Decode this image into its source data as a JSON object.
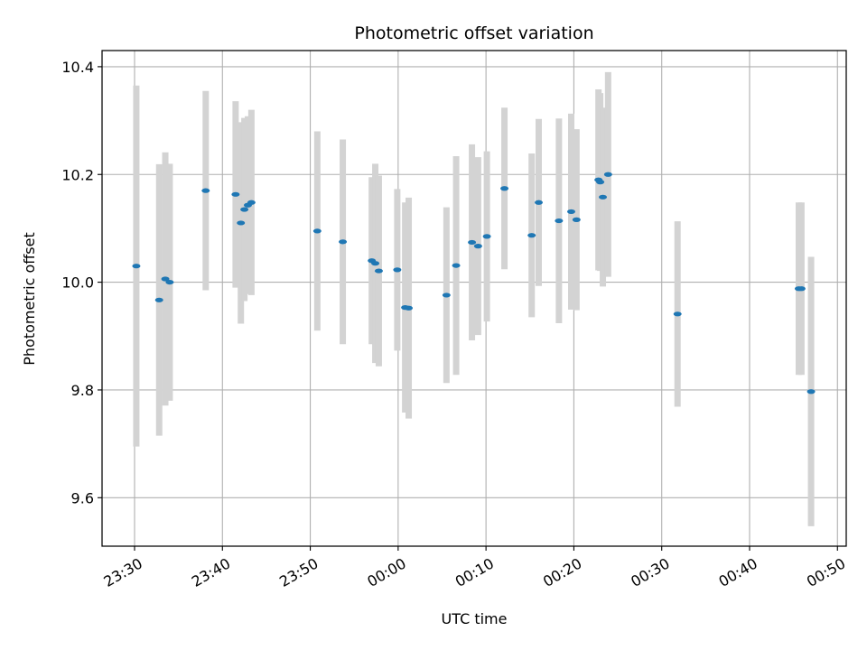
{
  "chart_data": {
    "type": "scatter",
    "title": "Photometric offset variation",
    "xlabel": "UTC time",
    "ylabel": "Photometric offset",
    "grid": true,
    "legend": "none",
    "xlim_minutes": [
      -3.7,
      81.0
    ],
    "ylim": [
      9.51,
      10.43
    ],
    "x_ticks": [
      {
        "minute": 0,
        "label": "23:30"
      },
      {
        "minute": 10,
        "label": "23:40"
      },
      {
        "minute": 20,
        "label": "23:50"
      },
      {
        "minute": 30,
        "label": "00:00"
      },
      {
        "minute": 40,
        "label": "00:10"
      },
      {
        "minute": 50,
        "label": "00:20"
      },
      {
        "minute": 60,
        "label": "00:30"
      },
      {
        "minute": 70,
        "label": "00:40"
      },
      {
        "minute": 80,
        "label": "00:50"
      }
    ],
    "y_ticks": [
      {
        "value": 9.6,
        "label": "9.6"
      },
      {
        "value": 9.8,
        "label": "9.8"
      },
      {
        "value": 10.0,
        "label": "10.0"
      },
      {
        "value": 10.2,
        "label": "10.2"
      },
      {
        "value": 10.4,
        "label": "10.4"
      }
    ],
    "colors": {
      "point": "#1f77b4",
      "errorbar": "#d3d3d3",
      "grid": "#b0b0b0"
    },
    "series": [
      {
        "name": "offset",
        "points": [
          {
            "t": 0.2,
            "y": 10.03,
            "err": 0.335
          },
          {
            "t": 2.8,
            "y": 9.967,
            "err": 0.252
          },
          {
            "t": 3.5,
            "y": 10.006,
            "err": 0.235
          },
          {
            "t": 4.0,
            "y": 10.0,
            "err": 0.22
          },
          {
            "t": 8.1,
            "y": 10.17,
            "err": 0.185
          },
          {
            "t": 11.5,
            "y": 10.163,
            "err": 0.173
          },
          {
            "t": 12.1,
            "y": 10.11,
            "err": 0.187
          },
          {
            "t": 12.5,
            "y": 10.135,
            "err": 0.17
          },
          {
            "t": 12.9,
            "y": 10.143,
            "err": 0.165
          },
          {
            "t": 13.3,
            "y": 10.148,
            "err": 0.172
          },
          {
            "t": 20.8,
            "y": 10.095,
            "err": 0.185
          },
          {
            "t": 23.7,
            "y": 10.075,
            "err": 0.19
          },
          {
            "t": 27.0,
            "y": 10.04,
            "err": 0.155
          },
          {
            "t": 27.4,
            "y": 10.035,
            "err": 0.185
          },
          {
            "t": 27.8,
            "y": 10.021,
            "err": 0.177
          },
          {
            "t": 29.9,
            "y": 10.023,
            "err": 0.15
          },
          {
            "t": 30.8,
            "y": 9.953,
            "err": 0.195
          },
          {
            "t": 31.2,
            "y": 9.952,
            "err": 0.205
          },
          {
            "t": 35.5,
            "y": 9.976,
            "err": 0.163
          },
          {
            "t": 36.6,
            "y": 10.031,
            "err": 0.203
          },
          {
            "t": 38.4,
            "y": 10.074,
            "err": 0.182
          },
          {
            "t": 39.1,
            "y": 10.067,
            "err": 0.165
          },
          {
            "t": 40.1,
            "y": 10.085,
            "err": 0.158
          },
          {
            "t": 42.1,
            "y": 10.174,
            "err": 0.15
          },
          {
            "t": 45.2,
            "y": 10.087,
            "err": 0.152
          },
          {
            "t": 46.0,
            "y": 10.148,
            "err": 0.155
          },
          {
            "t": 48.3,
            "y": 10.114,
            "err": 0.19
          },
          {
            "t": 49.7,
            "y": 10.131,
            "err": 0.182
          },
          {
            "t": 50.3,
            "y": 10.116,
            "err": 0.168
          },
          {
            "t": 52.8,
            "y": 10.19,
            "err": 0.168
          },
          {
            "t": 53.0,
            "y": 10.186,
            "err": 0.165
          },
          {
            "t": 53.3,
            "y": 10.158,
            "err": 0.166
          },
          {
            "t": 53.9,
            "y": 10.2,
            "err": 0.19
          },
          {
            "t": 61.8,
            "y": 9.941,
            "err": 0.172
          },
          {
            "t": 75.6,
            "y": 9.988,
            "err": 0.16
          },
          {
            "t": 75.9,
            "y": 9.988,
            "err": 0.16
          },
          {
            "t": 77.0,
            "y": 9.797,
            "err": 0.25
          }
        ]
      }
    ]
  }
}
